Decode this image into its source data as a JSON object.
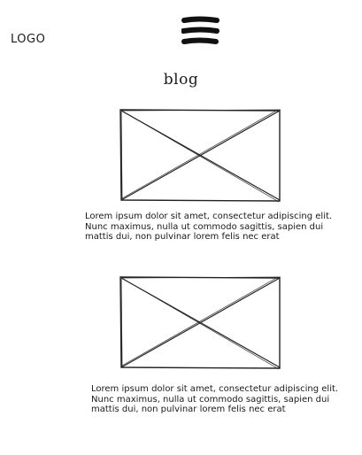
{
  "header": {
    "logo_text": "LOGO",
    "menu_icon": "hamburger-menu-icon"
  },
  "page": {
    "title": "blog"
  },
  "posts": [
    {
      "image_icon": "image-placeholder-icon",
      "excerpt": "Lorem ipsum dolor sit amet, consectetur adipiscing elit. Nunc maximus, nulla ut commodo sagittis, sapien dui mattis dui, non pulvinar lorem felis nec erat"
    },
    {
      "image_icon": "image-placeholder-icon",
      "excerpt": "Lorem ipsum dolor sit amet, consectetur adipiscing elit. Nunc maximus, nulla ut commodo sagittis, sapien dui mattis dui, non pulvinar lorem felis nec erat"
    }
  ]
}
